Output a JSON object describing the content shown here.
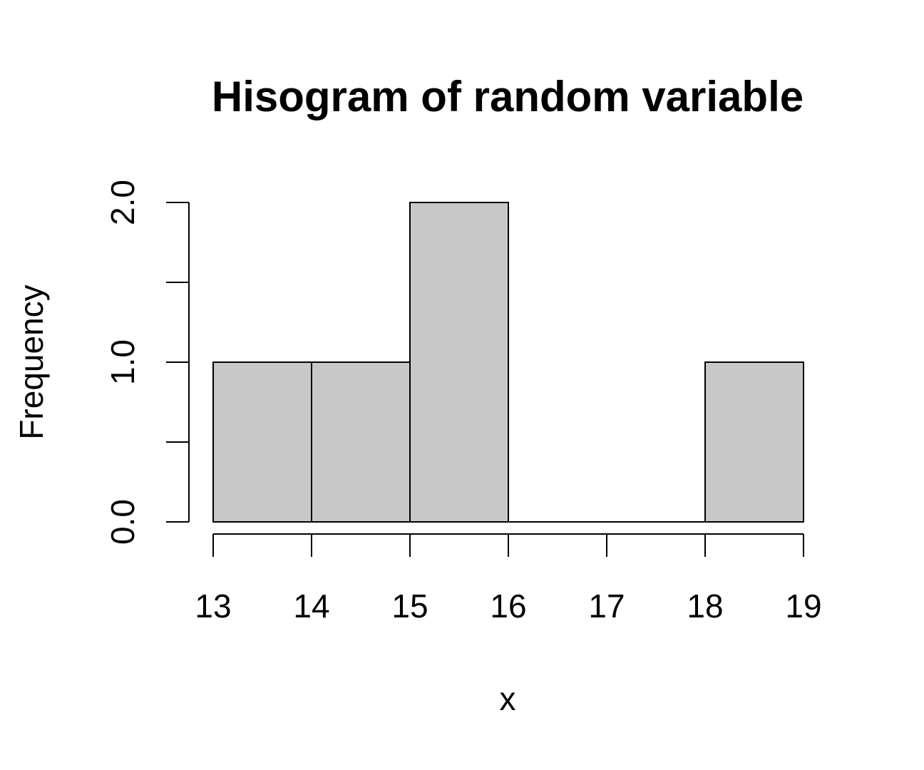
{
  "chart_data": {
    "type": "bar",
    "title": "Hisogram of random variable",
    "xlabel": "x",
    "ylabel": "Frequency",
    "bins": [
      {
        "start": 13,
        "end": 14,
        "count": 1
      },
      {
        "start": 14,
        "end": 15,
        "count": 1
      },
      {
        "start": 15,
        "end": 16,
        "count": 2
      },
      {
        "start": 16,
        "end": 17,
        "count": 0
      },
      {
        "start": 17,
        "end": 18,
        "count": 0
      },
      {
        "start": 18,
        "end": 19,
        "count": 1
      }
    ],
    "xlim": [
      13,
      19
    ],
    "ylim": [
      0,
      2
    ],
    "x_ticks": [
      13,
      14,
      15,
      16,
      17,
      18,
      19
    ],
    "x_tick_labels": [
      "13",
      "14",
      "15",
      "16",
      "17",
      "18",
      "19"
    ],
    "y_ticks": [
      0,
      0.5,
      1,
      1.5,
      2
    ],
    "y_tick_labels": [
      "0.0",
      "",
      "1.0",
      "",
      "2.0"
    ],
    "bar_color": "#c8c8c8",
    "grid": false,
    "legend": "none"
  }
}
